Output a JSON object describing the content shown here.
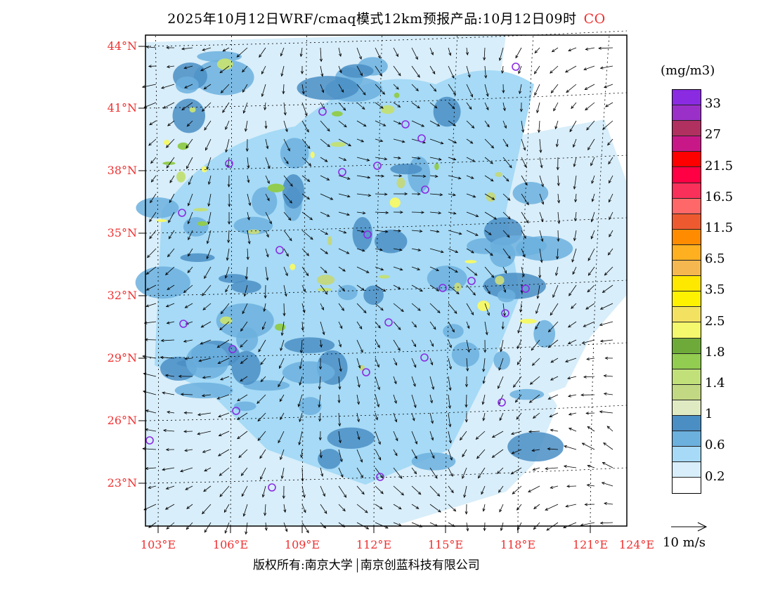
{
  "title": {
    "text": "2025年10月12日WRF/cmaq模式12km预报产品:10月12日09时",
    "species": "CO"
  },
  "axes": {
    "lat_labels": [
      "44°N",
      "41°N",
      "38°N",
      "35°N",
      "32°N",
      "29°N",
      "26°N",
      "23°N"
    ],
    "lon_labels": [
      "103°E",
      "106°E",
      "109°E",
      "112°E",
      "115°E",
      "118°E",
      "121°E",
      "124°E"
    ]
  },
  "legend": {
    "unit": "(mg/m3)",
    "colors": [
      "#8a2be2",
      "#9b30c8",
      "#b03060",
      "#c81888",
      "#ff0000",
      "#ff0044",
      "#f8305a",
      "#ff6868",
      "#ee5a30",
      "#ff8c00",
      "#ffb020",
      "#f5b850",
      "#ffe800",
      "#fff200",
      "#f3e262",
      "#f4f86c",
      "#6eaa3a",
      "#92cc50",
      "#c2e07a",
      "#c2d882",
      "#e0eac2",
      "#4a8ec4",
      "#6cb0de",
      "#a6daf6",
      "#d8eefa",
      "#ffffff"
    ],
    "labels": [
      "33",
      "27",
      "21.5",
      "16.5",
      "11.5",
      "6.5",
      "3.5",
      "2.5",
      "1.8",
      "1.4",
      "1",
      "0.6",
      "0.2"
    ],
    "vector_label": "10 m/s"
  },
  "footer": {
    "copyright": "版权所有:南京大学",
    "company": "南京创蓝科技有限公司"
  }
}
